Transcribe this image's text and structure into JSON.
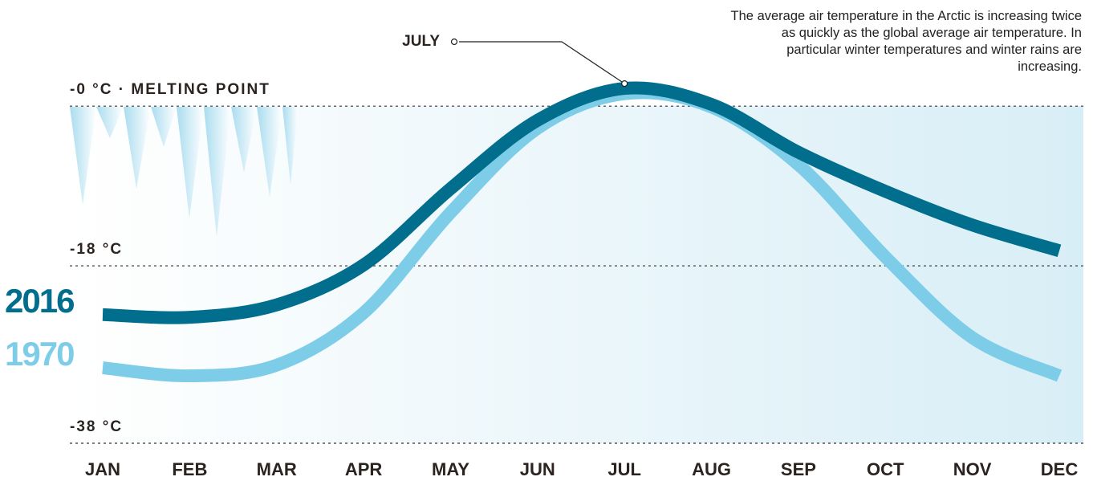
{
  "chart_data": {
    "type": "line",
    "note": "The average air temperature in the Arctic is increasing twice as quickly as the global average air temperature. In particular winter temperatures and winter rains are increasing.",
    "annotation": "JULY",
    "categories": [
      "JAN",
      "FEB",
      "MAR",
      "APR",
      "MAY",
      "JUN",
      "JUL",
      "AUG",
      "SEP",
      "OCT",
      "NOV",
      "DEC"
    ],
    "series": [
      {
        "name": "2016",
        "color": "#006e8c",
        "values": [
          -23.5,
          -23.8,
          -22.4,
          -17.9,
          -9.3,
          -1.6,
          2.0,
          0.2,
          -5.2,
          -9.6,
          -13.4,
          -16.3
        ]
      },
      {
        "name": "1970",
        "color": "#7dcde8",
        "values": [
          -29.5,
          -30.4,
          -29.2,
          -23.3,
          -12.0,
          -2.5,
          1.4,
          -0.1,
          -6.6,
          -17.0,
          -26.1,
          -30.4
        ]
      }
    ],
    "ylim": [
      -38,
      4
    ],
    "yticks": [
      {
        "value": 0,
        "label": "-0 °C · MELTING POINT"
      },
      {
        "value": -18,
        "label": "-18 °C"
      },
      {
        "value": -38,
        "label": "-38 °C"
      }
    ],
    "grid": true
  }
}
